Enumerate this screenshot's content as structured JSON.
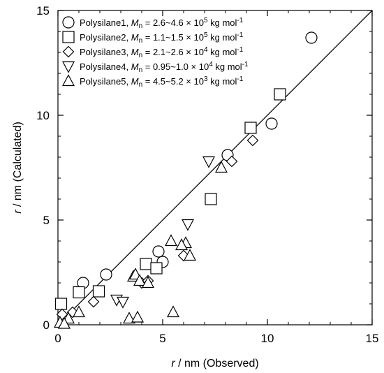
{
  "chart_data": {
    "type": "scatter",
    "xlim": [
      0,
      15
    ],
    "ylim": [
      0,
      15
    ],
    "x_ticks": [
      "0",
      "5",
      "10",
      "15"
    ],
    "y_ticks": [
      "0",
      "5",
      "10",
      "15"
    ],
    "xlabel": {
      "var": "r",
      "rest": " / nm (Observed)"
    },
    "ylabel": {
      "var": "r",
      "rest": " / nm (Calculated)"
    },
    "grid": false,
    "legend_position": "top-left",
    "reference_line": {
      "x": [
        0,
        15
      ],
      "y": [
        0,
        15
      ]
    },
    "series": [
      {
        "name": "Polysilane1",
        "marker": "circle",
        "mn_sub": "n",
        "mn_value": " = 2.6~4.6 × 10",
        "mn_exp": "5",
        "mn_unit": " kg mol",
        "mn_unit_exp": "-1",
        "x": [
          12.1,
          10.2,
          8.1,
          4.8,
          5.0,
          2.3,
          1.2
        ],
        "y": [
          13.7,
          9.6,
          8.1,
          3.5,
          3.0,
          2.4,
          2.0
        ]
      },
      {
        "name": "Polysilane2",
        "marker": "square",
        "mn_sub": "n",
        "mn_value": " = 1.1~1.5 × 10",
        "mn_exp": "5",
        "mn_unit": " kg mol",
        "mn_unit_exp": "-1",
        "x": [
          10.6,
          9.2,
          7.3,
          4.2,
          4.7,
          1.95,
          1.0,
          0.15
        ],
        "y": [
          11.0,
          9.4,
          6.0,
          2.9,
          2.7,
          1.6,
          1.55,
          1.0
        ]
      },
      {
        "name": "Polysilane3",
        "marker": "diamond",
        "mn_sub": "n",
        "mn_value": " = 2.1~2.6 × 10",
        "mn_exp": "4",
        "mn_unit": " kg mol",
        "mn_unit_exp": "-1",
        "x": [
          9.3,
          8.3,
          6.0,
          4.0,
          4.3,
          1.7,
          0.7,
          0.3,
          0.2
        ],
        "y": [
          8.8,
          7.8,
          3.3,
          2.0,
          2.1,
          1.1,
          0.6,
          0.3,
          0.5
        ]
      },
      {
        "name": "Polysilane4",
        "marker": "triangle-down",
        "mn_sub": "n",
        "mn_value": " = 0.95~1.0 × 10",
        "mn_exp": "4",
        "mn_unit": " kg mol",
        "mn_unit_exp": "-1",
        "x": [
          7.2,
          6.2,
          2.8,
          3.1
        ],
        "y": [
          7.8,
          4.8,
          1.2,
          1.1
        ]
      },
      {
        "name": "Polysilane5",
        "marker": "triangle-up",
        "mn_sub": "n",
        "mn_value": " = 4.5~5.2 × 10",
        "mn_exp": "3",
        "mn_unit": " kg mol",
        "mn_unit_exp": "-1",
        "x": [
          7.8,
          6.1,
          5.9,
          6.3,
          5.4,
          3.6,
          3.7,
          3.9,
          4.3,
          5.5,
          3.4,
          3.8,
          1.0,
          0.5,
          0.1,
          0.3
        ],
        "y": [
          7.5,
          3.9,
          3.8,
          3.3,
          4.0,
          2.3,
          2.4,
          2.1,
          2.0,
          0.6,
          0.3,
          0.35,
          0.6,
          0.3,
          0.1,
          0.05
        ]
      }
    ]
  }
}
